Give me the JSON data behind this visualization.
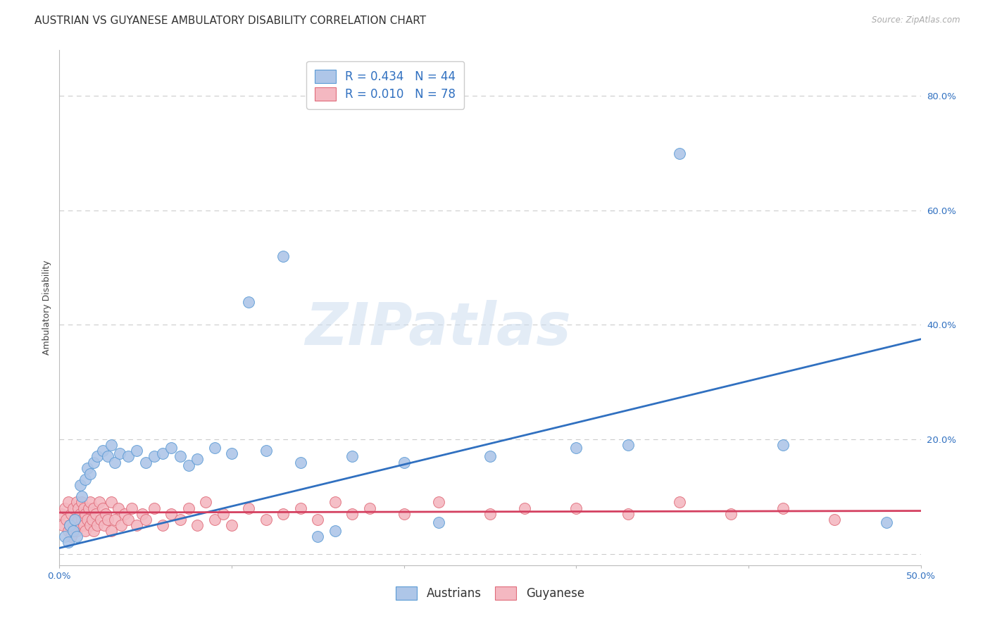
{
  "title": "AUSTRIAN VS GUYANESE AMBULATORY DISABILITY CORRELATION CHART",
  "source": "Source: ZipAtlas.com",
  "ylabel": "Ambulatory Disability",
  "xlim": [
    0.0,
    0.5
  ],
  "ylim": [
    -0.02,
    0.88
  ],
  "yticks": [
    0.0,
    0.2,
    0.4,
    0.6,
    0.8
  ],
  "ytick_labels": [
    "",
    "20.0%",
    "40.0%",
    "60.0%",
    "80.0%"
  ],
  "xtick_vals": [
    0.0,
    0.1,
    0.2,
    0.3,
    0.4,
    0.5
  ],
  "xtick_labels": [
    "0.0%",
    "",
    "",
    "",
    "",
    "50.0%"
  ],
  "grid_color": "#cccccc",
  "background_color": "#ffffff",
  "plot_bg_color": "#ffffff",
  "austrians_color": "#aec6e8",
  "austrians_edge_color": "#5b9bd5",
  "guyanese_color": "#f4b8c1",
  "guyanese_edge_color": "#e06c7a",
  "austrians_line_color": "#3070c0",
  "guyanese_line_color": "#d44060",
  "legend_austrians_color": "#aec6e8",
  "legend_guyanese_color": "#f4b8c1",
  "R_austrians": 0.434,
  "N_austrians": 44,
  "R_guyanese": 0.01,
  "N_guyanese": 78,
  "aus_line_x0": 0.0,
  "aus_line_y0": 0.01,
  "aus_line_x1": 0.5,
  "aus_line_y1": 0.375,
  "guy_line_x0": 0.0,
  "guy_line_y0": 0.072,
  "guy_line_x1": 0.5,
  "guy_line_y1": 0.075,
  "austrians_x": [
    0.003,
    0.005,
    0.006,
    0.008,
    0.009,
    0.01,
    0.012,
    0.013,
    0.015,
    0.016,
    0.018,
    0.02,
    0.022,
    0.025,
    0.028,
    0.03,
    0.032,
    0.035,
    0.04,
    0.045,
    0.05,
    0.055,
    0.06,
    0.065,
    0.07,
    0.075,
    0.08,
    0.09,
    0.1,
    0.11,
    0.12,
    0.13,
    0.14,
    0.15,
    0.16,
    0.17,
    0.2,
    0.22,
    0.25,
    0.3,
    0.33,
    0.36,
    0.42,
    0.48
  ],
  "austrians_y": [
    0.03,
    0.02,
    0.05,
    0.04,
    0.06,
    0.03,
    0.12,
    0.1,
    0.13,
    0.15,
    0.14,
    0.16,
    0.17,
    0.18,
    0.17,
    0.19,
    0.16,
    0.175,
    0.17,
    0.18,
    0.16,
    0.17,
    0.175,
    0.185,
    0.17,
    0.155,
    0.165,
    0.185,
    0.175,
    0.44,
    0.18,
    0.52,
    0.16,
    0.03,
    0.04,
    0.17,
    0.16,
    0.055,
    0.17,
    0.185,
    0.19,
    0.7,
    0.19,
    0.055
  ],
  "guyanese_x": [
    0.001,
    0.002,
    0.003,
    0.004,
    0.005,
    0.005,
    0.006,
    0.007,
    0.007,
    0.008,
    0.008,
    0.009,
    0.01,
    0.01,
    0.011,
    0.011,
    0.012,
    0.012,
    0.013,
    0.013,
    0.014,
    0.014,
    0.015,
    0.015,
    0.016,
    0.017,
    0.018,
    0.018,
    0.019,
    0.02,
    0.02,
    0.021,
    0.022,
    0.023,
    0.024,
    0.025,
    0.026,
    0.027,
    0.028,
    0.03,
    0.03,
    0.032,
    0.034,
    0.036,
    0.038,
    0.04,
    0.042,
    0.045,
    0.048,
    0.05,
    0.055,
    0.06,
    0.065,
    0.07,
    0.075,
    0.08,
    0.085,
    0.09,
    0.095,
    0.1,
    0.11,
    0.12,
    0.13,
    0.14,
    0.15,
    0.16,
    0.17,
    0.18,
    0.2,
    0.22,
    0.25,
    0.27,
    0.3,
    0.33,
    0.36,
    0.39,
    0.42,
    0.45
  ],
  "guyanese_y": [
    0.07,
    0.05,
    0.08,
    0.06,
    0.04,
    0.09,
    0.05,
    0.07,
    0.03,
    0.08,
    0.05,
    0.06,
    0.04,
    0.09,
    0.06,
    0.08,
    0.05,
    0.07,
    0.06,
    0.09,
    0.05,
    0.08,
    0.04,
    0.07,
    0.06,
    0.08,
    0.05,
    0.09,
    0.06,
    0.04,
    0.08,
    0.07,
    0.05,
    0.09,
    0.06,
    0.08,
    0.05,
    0.07,
    0.06,
    0.04,
    0.09,
    0.06,
    0.08,
    0.05,
    0.07,
    0.06,
    0.08,
    0.05,
    0.07,
    0.06,
    0.08,
    0.05,
    0.07,
    0.06,
    0.08,
    0.05,
    0.09,
    0.06,
    0.07,
    0.05,
    0.08,
    0.06,
    0.07,
    0.08,
    0.06,
    0.09,
    0.07,
    0.08,
    0.07,
    0.09,
    0.07,
    0.08,
    0.08,
    0.07,
    0.09,
    0.07,
    0.08,
    0.06
  ],
  "watermark_text": "ZIPatlas",
  "watermark_color": "#ccddf0",
  "watermark_alpha": 0.55,
  "title_fontsize": 11,
  "axis_label_fontsize": 9,
  "tick_fontsize": 9.5,
  "legend_fontsize": 12
}
